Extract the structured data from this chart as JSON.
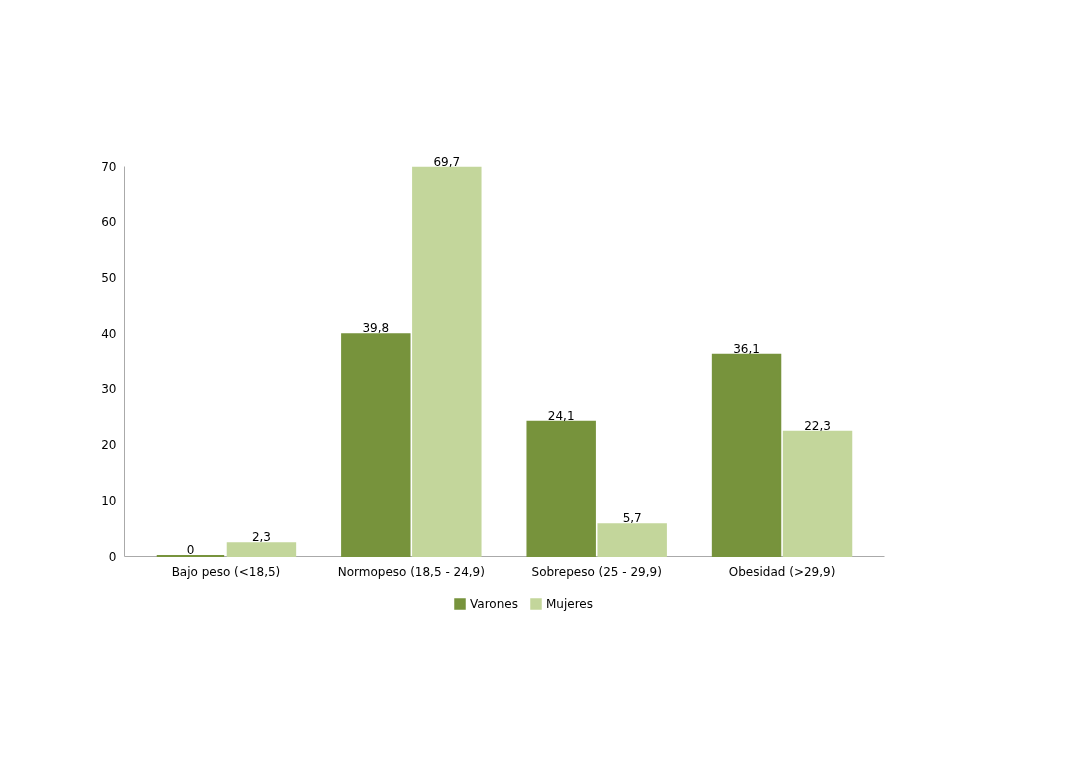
{
  "chart_data": {
    "type": "bar",
    "categories": [
      "Bajo peso (<18,5)",
      "Normopeso (18,5 - 24,9)",
      "Sobrepeso (25 - 29,9)",
      "Obesidad (>29,9)"
    ],
    "series": [
      {
        "name": "Varones",
        "color": "#77933c",
        "values": [
          0,
          39.8,
          24.1,
          36.1
        ],
        "value_labels": [
          "0",
          "39,8",
          "24,1",
          "36,1"
        ]
      },
      {
        "name": "Mujeres",
        "color": "#c3d69b",
        "values": [
          2.3,
          69.7,
          5.7,
          22.3
        ],
        "value_labels": [
          "2,3",
          "69,7",
          "5,7",
          "22,3"
        ]
      }
    ],
    "ylim": [
      0,
      70
    ],
    "yticks": [
      0,
      10,
      20,
      30,
      40,
      50,
      60,
      70
    ],
    "grid": false,
    "legend": "bottom"
  }
}
